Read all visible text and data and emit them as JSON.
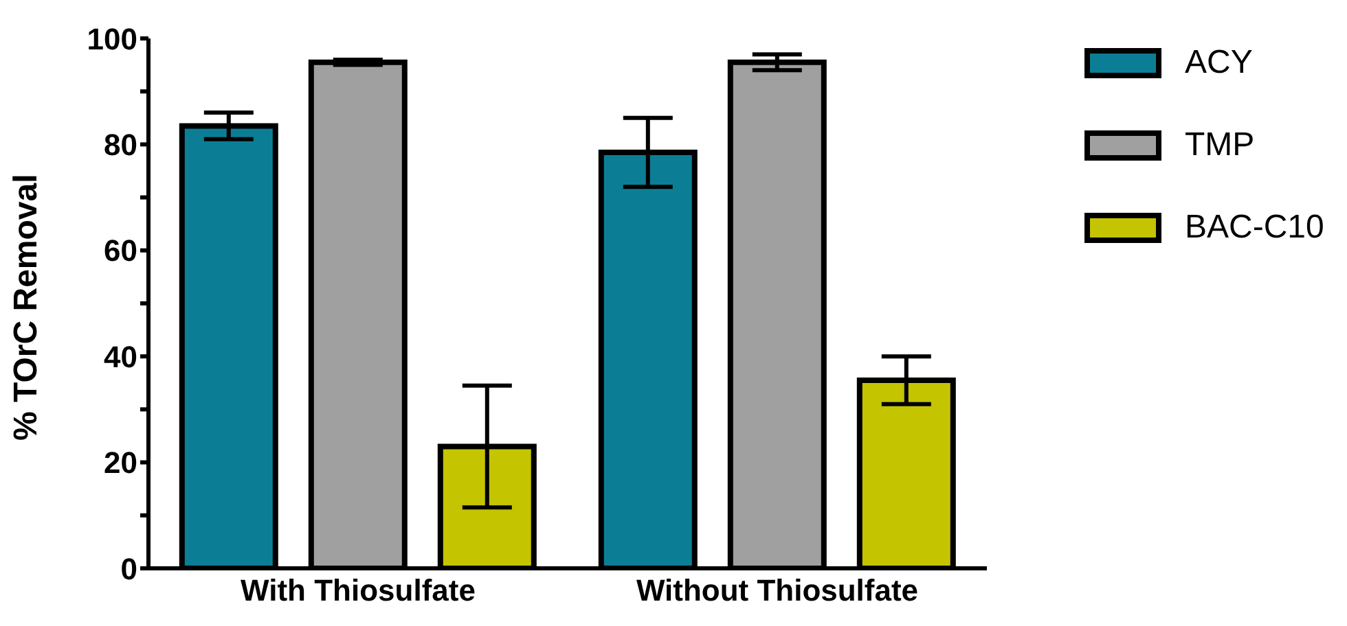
{
  "chart_data": {
    "type": "bar",
    "ylabel": "% TOrC Removal",
    "categories": [
      "With Thiosulfate",
      "Without Thiosulfate"
    ],
    "series": [
      {
        "name": "ACY",
        "color": "#0b7e96",
        "values": [
          83.5,
          78.5
        ],
        "errors": [
          2.5,
          6.5
        ]
      },
      {
        "name": "TMP",
        "color": "#a0a0a0",
        "values": [
          95.5,
          95.5
        ],
        "errors": [
          0.5,
          1.5
        ]
      },
      {
        "name": "BAC-C10",
        "color": "#c4c400",
        "values": [
          23,
          35.5
        ],
        "errors": [
          11.5,
          4.5
        ]
      }
    ],
    "ylim": [
      0,
      100
    ],
    "yticks": [
      0,
      {
        "value": 10,
        "label": null
      },
      20,
      {
        "value": 30,
        "label": null
      },
      40,
      {
        "value": 50,
        "label": null
      },
      60,
      {
        "value": 70,
        "label": null
      },
      80,
      {
        "value": 90,
        "label": null
      },
      100
    ],
    "grid": false,
    "legend": "top right"
  }
}
